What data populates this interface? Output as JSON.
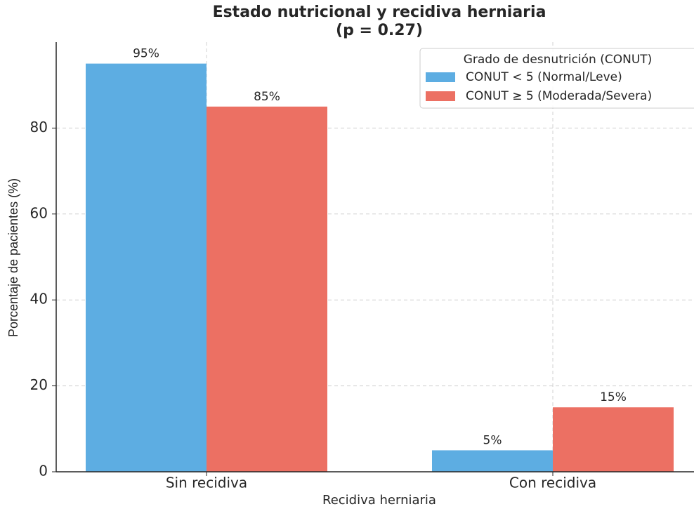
{
  "chart_data": {
    "type": "bar",
    "title": "Estado nutricional y recidiva herniaria",
    "subtitle": "(p = 0.27)",
    "x_label": "Recidiva herniaria",
    "y_label": "Porcentaje de pacientes (%)",
    "categories": [
      "Sin recidiva",
      "Con recidiva"
    ],
    "series": [
      {
        "name": "CONUT < 5 (Normal/Leve)",
        "color": "#5dade2",
        "values": [
          95,
          5
        ],
        "value_labels": [
          "95%",
          "5%"
        ]
      },
      {
        "name": "CONUT ≥ 5 (Moderada/Severa)",
        "color": "#ec7063",
        "values": [
          85,
          15
        ],
        "value_labels": [
          "85%",
          "15%"
        ]
      }
    ],
    "legend_title": "Grado de desnutrición (CONUT)",
    "legend": "upper right",
    "ylim": [
      0,
      100
    ],
    "yticks": [
      0,
      20,
      40,
      60,
      80
    ],
    "grid": true
  }
}
